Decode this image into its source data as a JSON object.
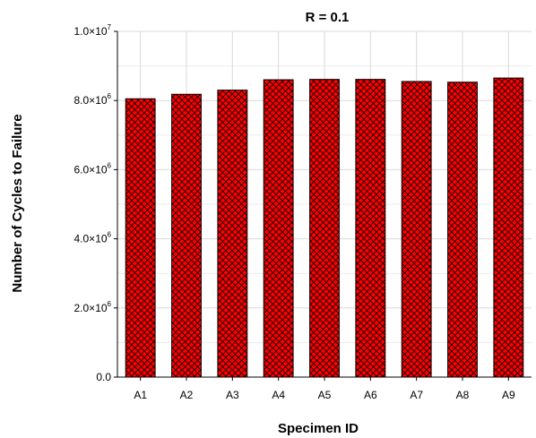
{
  "chart_data": {
    "type": "bar",
    "title": "R = 0.1",
    "xlabel": "Specimen ID",
    "ylabel": "Number of Cycles to Failure",
    "categories": [
      "A1",
      "A2",
      "A3",
      "A4",
      "A5",
      "A6",
      "A7",
      "A8",
      "A9"
    ],
    "values": [
      8050000,
      8180000,
      8300000,
      8600000,
      8610000,
      8610000,
      8550000,
      8530000,
      8650000
    ],
    "ylim": [
      0,
      10000000
    ],
    "yticks": [
      {
        "value": 0,
        "mantissa": "0.0",
        "exp": ""
      },
      {
        "value": 2000000,
        "mantissa": "2.0×10",
        "exp": "6"
      },
      {
        "value": 4000000,
        "mantissa": "4.0×10",
        "exp": "6"
      },
      {
        "value": 6000000,
        "mantissa": "6.0×10",
        "exp": "6"
      },
      {
        "value": 8000000,
        "mantissa": "8.0×10",
        "exp": "6"
      },
      {
        "value": 10000000,
        "mantissa": "1.0×10",
        "exp": "7"
      }
    ],
    "grid": true,
    "bar_color": "#ff0000",
    "pattern": "crosshatch"
  }
}
